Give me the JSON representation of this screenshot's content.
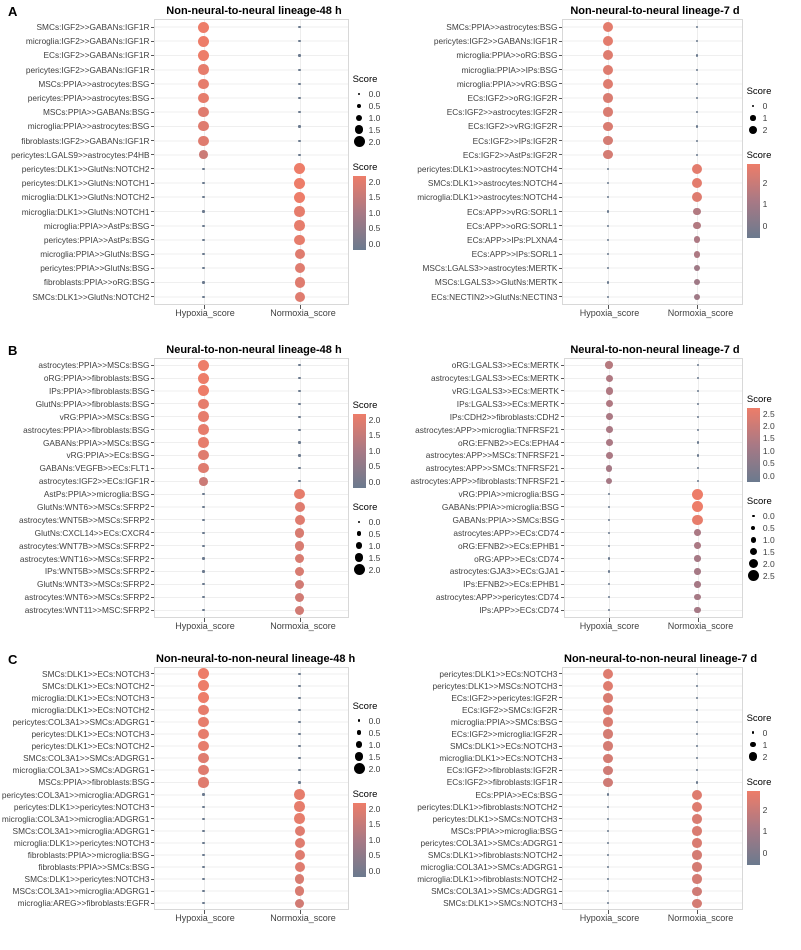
{
  "colors": {
    "score_high": "#ED7D69",
    "score_mid": "#A87985",
    "score_low": "#6B7A8E",
    "legend_dot": "#000000",
    "grid": "#EFEFEF",
    "panel_border": "#D8D8D8",
    "text": "#3F3F3F"
  },
  "panels": [
    {
      "label": "A"
    },
    {
      "label": "B"
    },
    {
      "label": "C"
    }
  ],
  "chart_data": [
    {
      "type": "scatter",
      "panel": "A",
      "title": "Non-neural-to-neural lineage-48 h",
      "x_categories": [
        "Hypoxia_score",
        "Normoxia_score"
      ],
      "score_max": 2.0,
      "legend_order": [
        "size",
        "color"
      ],
      "size_legend": {
        "title": "Score",
        "labels": [
          "0.0",
          "0.5",
          "1.0",
          "1.5",
          "2.0"
        ],
        "values": [
          0,
          0.5,
          1,
          1.5,
          2
        ]
      },
      "color_legend": {
        "title": "Score",
        "tick_labels": [
          "2.0",
          "1.5",
          "1.0",
          "0.5",
          "0.0"
        ]
      },
      "rows": [
        {
          "label": "SMCs:IGF2>>GABANs:IGF1R",
          "hypoxia": 2.0,
          "normoxia": 0
        },
        {
          "label": "microglia:IGF2>>GABANs:IGF1R",
          "hypoxia": 2.0,
          "normoxia": 0
        },
        {
          "label": "ECs:IGF2>>GABANs:IGF1R",
          "hypoxia": 2.0,
          "normoxia": 0
        },
        {
          "label": "pericytes:IGF2>>GABANs:IGF1R",
          "hypoxia": 1.9,
          "normoxia": 0
        },
        {
          "label": "MSCs:PPIA>>astrocytes:BSG",
          "hypoxia": 1.9,
          "normoxia": 0
        },
        {
          "label": "pericytes:PPIA>>astrocytes:BSG",
          "hypoxia": 1.9,
          "normoxia": 0
        },
        {
          "label": "MSCs:PPIA>>GABANs:BSG",
          "hypoxia": 1.8,
          "normoxia": 0
        },
        {
          "label": "microglia:PPIA>>astrocytes:BSG",
          "hypoxia": 1.8,
          "normoxia": 0
        },
        {
          "label": "fibroblasts:IGF2>>GABANs:IGF1R",
          "hypoxia": 1.8,
          "normoxia": 0
        },
        {
          "label": "pericytes:LGALS9>>astrocytes:P4HB",
          "hypoxia": 1.5,
          "normoxia": 0
        },
        {
          "label": "pericytes:DLK1>>GlutNs:NOTCH2",
          "hypoxia": 0,
          "normoxia": 2.0
        },
        {
          "label": "pericytes:DLK1>>GlutNs:NOTCH1",
          "hypoxia": 0,
          "normoxia": 2.0
        },
        {
          "label": "microglia:DLK1>>GlutNs:NOTCH2",
          "hypoxia": 0,
          "normoxia": 2.0
        },
        {
          "label": "microglia:DLK1>>GlutNs:NOTCH1",
          "hypoxia": 0,
          "normoxia": 1.9
        },
        {
          "label": "microglia:PPIA>>AstPs:BSG",
          "hypoxia": 0,
          "normoxia": 1.9
        },
        {
          "label": "pericytes:PPIA>>AstPs:BSG",
          "hypoxia": 0,
          "normoxia": 1.9
        },
        {
          "label": "microglia:PPIA>>GlutNs:BSG",
          "hypoxia": 0,
          "normoxia": 1.8
        },
        {
          "label": "pericytes:PPIA>>GlutNs:BSG",
          "hypoxia": 0,
          "normoxia": 1.8
        },
        {
          "label": "fibroblasts:PPIA>>oRG:BSG",
          "hypoxia": 0,
          "normoxia": 1.8
        },
        {
          "label": "SMCs:DLK1>>GlutNs:NOTCH2",
          "hypoxia": 0,
          "normoxia": 1.8
        }
      ]
    },
    {
      "type": "scatter",
      "panel": "A",
      "title": "Non-neural-to-neural lineage-7 d",
      "x_categories": [
        "Hypoxia_score",
        "Normoxia_score"
      ],
      "score_max": 2.8,
      "legend_order": [
        "size",
        "color"
      ],
      "size_legend": {
        "title": "Score",
        "labels": [
          "0",
          "1",
          "2"
        ],
        "values": [
          0,
          1,
          2
        ]
      },
      "color_legend": {
        "title": "Score",
        "tick_labels": [
          "2",
          "1",
          "0"
        ]
      },
      "rows": [
        {
          "label": "SMCs:PPIA>>astrocytes:BSG",
          "hypoxia": 2.6,
          "normoxia": 0
        },
        {
          "label": "pericytes:IGF2>>GABANs:IGF1R",
          "hypoxia": 2.6,
          "normoxia": 0
        },
        {
          "label": "microglia:PPIA>>oRG:BSG",
          "hypoxia": 2.5,
          "normoxia": 0
        },
        {
          "label": "microglia:PPIA>>IPs:BSG",
          "hypoxia": 2.5,
          "normoxia": 0
        },
        {
          "label": "microglia:PPIA>>vRG:BSG",
          "hypoxia": 2.5,
          "normoxia": 0
        },
        {
          "label": "ECs:IGF2>>oRG:IGF2R",
          "hypoxia": 2.4,
          "normoxia": 0
        },
        {
          "label": "ECs:IGF2>>astrocytes:IGF2R",
          "hypoxia": 2.4,
          "normoxia": 0
        },
        {
          "label": "ECs:IGF2>>vRG:IGF2R",
          "hypoxia": 2.4,
          "normoxia": 0
        },
        {
          "label": "ECs:IGF2>>IPs:IGF2R",
          "hypoxia": 2.3,
          "normoxia": 0
        },
        {
          "label": "ECs:IGF2>>AstPs:IGF2R",
          "hypoxia": 2.3,
          "normoxia": 0
        },
        {
          "label": "pericytes:DLK1>>astrocytes:NOTCH4",
          "hypoxia": 0,
          "normoxia": 2.6
        },
        {
          "label": "SMCs:DLK1>>astrocytes:NOTCH4",
          "hypoxia": 0,
          "normoxia": 2.6
        },
        {
          "label": "microglia:DLK1>>astrocytes:NOTCH4",
          "hypoxia": 0,
          "normoxia": 2.5
        },
        {
          "label": "ECs:APP>>vRG:SORL1",
          "hypoxia": 0,
          "normoxia": 1.6
        },
        {
          "label": "ECs:APP>>oRG:SORL1",
          "hypoxia": 0,
          "normoxia": 1.6
        },
        {
          "label": "ECs:APP>>IPs:PLXNA4",
          "hypoxia": 0,
          "normoxia": 1.5
        },
        {
          "label": "ECs:APP>>IPs:SORL1",
          "hypoxia": 0,
          "normoxia": 1.5
        },
        {
          "label": "MSCs:LGALS3>>astrocytes:MERTK",
          "hypoxia": 0,
          "normoxia": 1.2
        },
        {
          "label": "MSCs:LGALS3>>GlutNs:MERTK",
          "hypoxia": 0,
          "normoxia": 1.2
        },
        {
          "label": "ECs:NECTIN2>>GlutNs:NECTIN3",
          "hypoxia": 0,
          "normoxia": 1.2
        }
      ]
    },
    {
      "type": "scatter",
      "panel": "B",
      "title": "Neural-to-non-neural lineage-48 h",
      "x_categories": [
        "Hypoxia_score",
        "Normoxia_score"
      ],
      "score_max": 2.0,
      "legend_order": [
        "color",
        "size"
      ],
      "size_legend": {
        "title": "Score",
        "labels": [
          "0.0",
          "0.5",
          "1.0",
          "1.5",
          "2.0"
        ],
        "values": [
          0,
          0.5,
          1,
          1.5,
          2
        ]
      },
      "color_legend": {
        "title": "Score",
        "tick_labels": [
          "2.0",
          "1.5",
          "1.0",
          "0.5",
          "0.0"
        ]
      },
      "rows": [
        {
          "label": "astrocytes:PPIA>>MSCs:BSG",
          "hypoxia": 2.0,
          "normoxia": 0
        },
        {
          "label": "oRG:PPIA>>fibroblasts:BSG",
          "hypoxia": 2.0,
          "normoxia": 0
        },
        {
          "label": "IPs:PPIA>>fibroblasts:BSG",
          "hypoxia": 2.0,
          "normoxia": 0
        },
        {
          "label": "GlutNs:PPIA>>fibroblasts:BSG",
          "hypoxia": 1.9,
          "normoxia": 0
        },
        {
          "label": "vRG:PPIA>>MSCs:BSG",
          "hypoxia": 1.9,
          "normoxia": 0
        },
        {
          "label": "astrocytes:PPIA>>fibroblasts:BSG",
          "hypoxia": 1.9,
          "normoxia": 0
        },
        {
          "label": "GABANs:PPIA>>MSCs:BSG",
          "hypoxia": 1.9,
          "normoxia": 0
        },
        {
          "label": "vRG:PPIA>>ECs:BSG",
          "hypoxia": 1.8,
          "normoxia": 0
        },
        {
          "label": "GABANs:VEGFB>>ECs:FLT1",
          "hypoxia": 1.8,
          "normoxia": 0
        },
        {
          "label": "astrocytes:IGF2>>ECs:IGF1R",
          "hypoxia": 1.5,
          "normoxia": 0
        },
        {
          "label": "AstPs:PPIA>>microglia:BSG",
          "hypoxia": 0,
          "normoxia": 1.9
        },
        {
          "label": "GlutNs:WNT6>>MSCs:SFRP2",
          "hypoxia": 0,
          "normoxia": 1.8
        },
        {
          "label": "astrocytes:WNT5B>>MSCs:SFRP2",
          "hypoxia": 0,
          "normoxia": 1.8
        },
        {
          "label": "GlutNs:CXCL14>>ECs:CXCR4",
          "hypoxia": 0,
          "normoxia": 1.7
        },
        {
          "label": "astrocytes:WNT7B>>MSCs:SFRP2",
          "hypoxia": 0,
          "normoxia": 1.7
        },
        {
          "label": "astrocytes:WNT16>>MSCs:SFRP2",
          "hypoxia": 0,
          "normoxia": 1.7
        },
        {
          "label": "IPs:WNT5B>>MSCs:SFRP2",
          "hypoxia": 0,
          "normoxia": 1.7
        },
        {
          "label": "GlutNs:WNT3>>MSCs:SFRP2",
          "hypoxia": 0,
          "normoxia": 1.6
        },
        {
          "label": "astrocytes:WNT6>>MSCs:SFRP2",
          "hypoxia": 0,
          "normoxia": 1.6
        },
        {
          "label": "astrocytes:WNT11>>MSC:SFRP2",
          "hypoxia": 0,
          "normoxia": 1.6
        }
      ]
    },
    {
      "type": "scatter",
      "panel": "B",
      "title": "Neural-to-non-neural lineage-7 d",
      "x_categories": [
        "Hypoxia_score",
        "Normoxia_score"
      ],
      "score_max": 2.5,
      "legend_order": [
        "color",
        "size"
      ],
      "size_legend": {
        "title": "Score",
        "labels": [
          "0.0",
          "0.5",
          "1.0",
          "1.5",
          "2.0",
          "2.5"
        ],
        "values": [
          0,
          0.5,
          1,
          1.5,
          2,
          2.5
        ]
      },
      "color_legend": {
        "title": "Score",
        "tick_labels": [
          "2.5",
          "2.0",
          "1.5",
          "1.0",
          "0.5",
          "0.0"
        ]
      },
      "rows": [
        {
          "label": "oRG:LGALS3>>ECs:MERTK",
          "hypoxia": 1.5,
          "normoxia": 0
        },
        {
          "label": "astrocytes:LGALS3>>ECs:MERTK",
          "hypoxia": 1.4,
          "normoxia": 0
        },
        {
          "label": "vRG:LGALS3>>ECs:MERTK",
          "hypoxia": 1.4,
          "normoxia": 0
        },
        {
          "label": "IPs:LGALS3>>ECs:MERTK",
          "hypoxia": 1.4,
          "normoxia": 0
        },
        {
          "label": "IPs:CDH2>>fibroblasts:CDH2",
          "hypoxia": 1.3,
          "normoxia": 0
        },
        {
          "label": "astrocytes:APP>>microglia:TNFRSF21",
          "hypoxia": 1.3,
          "normoxia": 0
        },
        {
          "label": "oRG:EFNB2>>ECs:EPHA4",
          "hypoxia": 1.3,
          "normoxia": 0
        },
        {
          "label": "astrocytes:APP>>MSCs:TNFRSF21",
          "hypoxia": 1.3,
          "normoxia": 0
        },
        {
          "label": "astrocytes:APP>>SMCs:TNFRSF21",
          "hypoxia": 1.2,
          "normoxia": 0
        },
        {
          "label": "astrocytes:APP>>fibroblasts:TNFRSF21",
          "hypoxia": 1.2,
          "normoxia": 0
        },
        {
          "label": "vRG:PPIA>>microglia:BSG",
          "hypoxia": 0,
          "normoxia": 2.5
        },
        {
          "label": "GABANs:PPIA>>microglia:BSG",
          "hypoxia": 0,
          "normoxia": 2.5
        },
        {
          "label": "GABANs:PPIA>>SMCs:BSG",
          "hypoxia": 0,
          "normoxia": 2.4
        },
        {
          "label": "astrocytes:APP>>ECs:CD74",
          "hypoxia": 0,
          "normoxia": 1.3
        },
        {
          "label": "oRG:EFNB2>>ECs:EPHB1",
          "hypoxia": 0,
          "normoxia": 1.3
        },
        {
          "label": "oRG:APP>>ECs:CD74",
          "hypoxia": 0,
          "normoxia": 1.2
        },
        {
          "label": "astrocytes:GJA3>>ECs:GJA1",
          "hypoxia": 0,
          "normoxia": 1.2
        },
        {
          "label": "IPs:EFNB2>>ECs:EPHB1",
          "hypoxia": 0,
          "normoxia": 1.2
        },
        {
          "label": "astrocytes:APP>>pericytes:CD74",
          "hypoxia": 0,
          "normoxia": 1.2
        },
        {
          "label": "IPs:APP>>ECs:CD74",
          "hypoxia": 0,
          "normoxia": 1.2
        }
      ]
    },
    {
      "type": "scatter",
      "panel": "C",
      "title": "Non-neural-to-non-neural lineage-48 h",
      "x_categories": [
        "Hypoxia_score",
        "Normoxia_score"
      ],
      "score_max": 2.0,
      "legend_order": [
        "size",
        "color"
      ],
      "size_legend": {
        "title": "Score",
        "labels": [
          "0.0",
          "0.5",
          "1.0",
          "1.5",
          "2.0"
        ],
        "values": [
          0,
          0.5,
          1,
          1.5,
          2
        ]
      },
      "color_legend": {
        "title": "Score",
        "tick_labels": [
          "2.0",
          "1.5",
          "1.0",
          "0.5",
          "0.0"
        ]
      },
      "rows": [
        {
          "label": "SMCs:DLK1>>ECs:NOTCH3",
          "hypoxia": 2.0,
          "normoxia": 0
        },
        {
          "label": "SMCs:DLK1>>ECs:NOTCH2",
          "hypoxia": 2.0,
          "normoxia": 0
        },
        {
          "label": "microglia:DLK1>>ECs:NOTCH3",
          "hypoxia": 2.0,
          "normoxia": 0
        },
        {
          "label": "microglia:DLK1>>ECs:NOTCH2",
          "hypoxia": 1.9,
          "normoxia": 0
        },
        {
          "label": "pericytes:COL3A1>>SMCs:ADGRG1",
          "hypoxia": 1.9,
          "normoxia": 0
        },
        {
          "label": "pericytes:DLK1>>ECs:NOTCH3",
          "hypoxia": 1.9,
          "normoxia": 0
        },
        {
          "label": "pericytes:DLK1>>ECs:NOTCH2",
          "hypoxia": 1.9,
          "normoxia": 0
        },
        {
          "label": "SMCs:COL3A1>>SMCs:ADGRG1",
          "hypoxia": 1.8,
          "normoxia": 0
        },
        {
          "label": "microglia:COL3A1>>SMCs:ADGRG1",
          "hypoxia": 1.8,
          "normoxia": 0
        },
        {
          "label": "MSCs:PPIA>>fibroblasts:BSG",
          "hypoxia": 1.8,
          "normoxia": 0
        },
        {
          "label": "pericytes:COL3A1>>microglia:ADGRG1",
          "hypoxia": 0,
          "normoxia": 1.9
        },
        {
          "label": "pericytes:DLK1>>pericytes:NOTCH3",
          "hypoxia": 0,
          "normoxia": 1.9
        },
        {
          "label": "microglia:COL3A1>>microglia:ADGRG1",
          "hypoxia": 0,
          "normoxia": 1.9
        },
        {
          "label": "SMCs:COL3A1>>microglia:ADGRG1",
          "hypoxia": 0,
          "normoxia": 1.8
        },
        {
          "label": "microglia:DLK1>>pericytes:NOTCH3",
          "hypoxia": 0,
          "normoxia": 1.8
        },
        {
          "label": "fibroblasts:PPIA>>microglia:BSG",
          "hypoxia": 0,
          "normoxia": 1.8
        },
        {
          "label": "fibroblasts:PPIA>>SMCs:BSG",
          "hypoxia": 0,
          "normoxia": 1.8
        },
        {
          "label": "SMCs:DLK1>>pericytes:NOTCH3",
          "hypoxia": 0,
          "normoxia": 1.7
        },
        {
          "label": "MSCs:COL3A1>>microglia:ADGRG1",
          "hypoxia": 0,
          "normoxia": 1.7
        },
        {
          "label": "microglia:AREG>>fibroblasts:EGFR",
          "hypoxia": 0,
          "normoxia": 1.6
        }
      ]
    },
    {
      "type": "scatter",
      "panel": "C",
      "title": "Non-neural-to-non-neural lineage-7 d",
      "x_categories": [
        "Hypoxia_score",
        "Normoxia_score"
      ],
      "score_max": 2.8,
      "legend_order": [
        "size",
        "color"
      ],
      "size_legend": {
        "title": "Score",
        "labels": [
          "0",
          "1",
          "2"
        ],
        "values": [
          0,
          1,
          2
        ]
      },
      "color_legend": {
        "title": "Score",
        "tick_labels": [
          "2",
          "1",
          "0"
        ]
      },
      "rows": [
        {
          "label": "pericytes:DLK1>>ECs:NOTCH3",
          "hypoxia": 2.5,
          "normoxia": 0
        },
        {
          "label": "pericytes:DLK1>>MSCs:NOTCH3",
          "hypoxia": 2.5,
          "normoxia": 0
        },
        {
          "label": "ECs:IGF2>>pericytes:IGF2R",
          "hypoxia": 2.4,
          "normoxia": 0
        },
        {
          "label": "ECs:IGF2>>SMCs:IGF2R",
          "hypoxia": 2.4,
          "normoxia": 0
        },
        {
          "label": "microglia:PPIA>>SMCs:BSG",
          "hypoxia": 2.4,
          "normoxia": 0
        },
        {
          "label": "ECs:IGF2>>microglia:IGF2R",
          "hypoxia": 2.3,
          "normoxia": 0
        },
        {
          "label": "SMCs:DLK1>>ECs:NOTCH3",
          "hypoxia": 2.3,
          "normoxia": 0
        },
        {
          "label": "microglia:DLK1>>ECs:NOTCH3",
          "hypoxia": 2.3,
          "normoxia": 0
        },
        {
          "label": "ECs:IGF2>>fibroblasts:IGF2R",
          "hypoxia": 2.2,
          "normoxia": 0
        },
        {
          "label": "ECs:IGF2>>fibroblasts:IGF1R",
          "hypoxia": 2.2,
          "normoxia": 0
        },
        {
          "label": "ECs:PPIA>>ECs:BSG",
          "hypoxia": 0,
          "normoxia": 2.5
        },
        {
          "label": "pericytes:DLK1>>fibroblasts:NOTCH2",
          "hypoxia": 0,
          "normoxia": 2.5
        },
        {
          "label": "pericytes:DLK1>>SMCs:NOTCH3",
          "hypoxia": 0,
          "normoxia": 2.4
        },
        {
          "label": "MSCs:PPIA>>microglia:BSG",
          "hypoxia": 0,
          "normoxia": 2.4
        },
        {
          "label": "pericytes:COL3A1>>SMCs:ADGRG1",
          "hypoxia": 0,
          "normoxia": 2.4
        },
        {
          "label": "SMCs:DLK1>>fibroblasts:NOTCH2",
          "hypoxia": 0,
          "normoxia": 2.3
        },
        {
          "label": "microglia:COL3A1>>SMCs:ADGRG1",
          "hypoxia": 0,
          "normoxia": 2.3
        },
        {
          "label": "microglia:DLK1>>fibroblasts:NOTCH2",
          "hypoxia": 0,
          "normoxia": 2.3
        },
        {
          "label": "SMCs:COL3A1>>SMCs:ADGRG1",
          "hypoxia": 0,
          "normoxia": 2.2
        },
        {
          "label": "SMCs:DLK1>>SMCs:NOTCH3",
          "hypoxia": 0,
          "normoxia": 2.3
        }
      ]
    }
  ]
}
